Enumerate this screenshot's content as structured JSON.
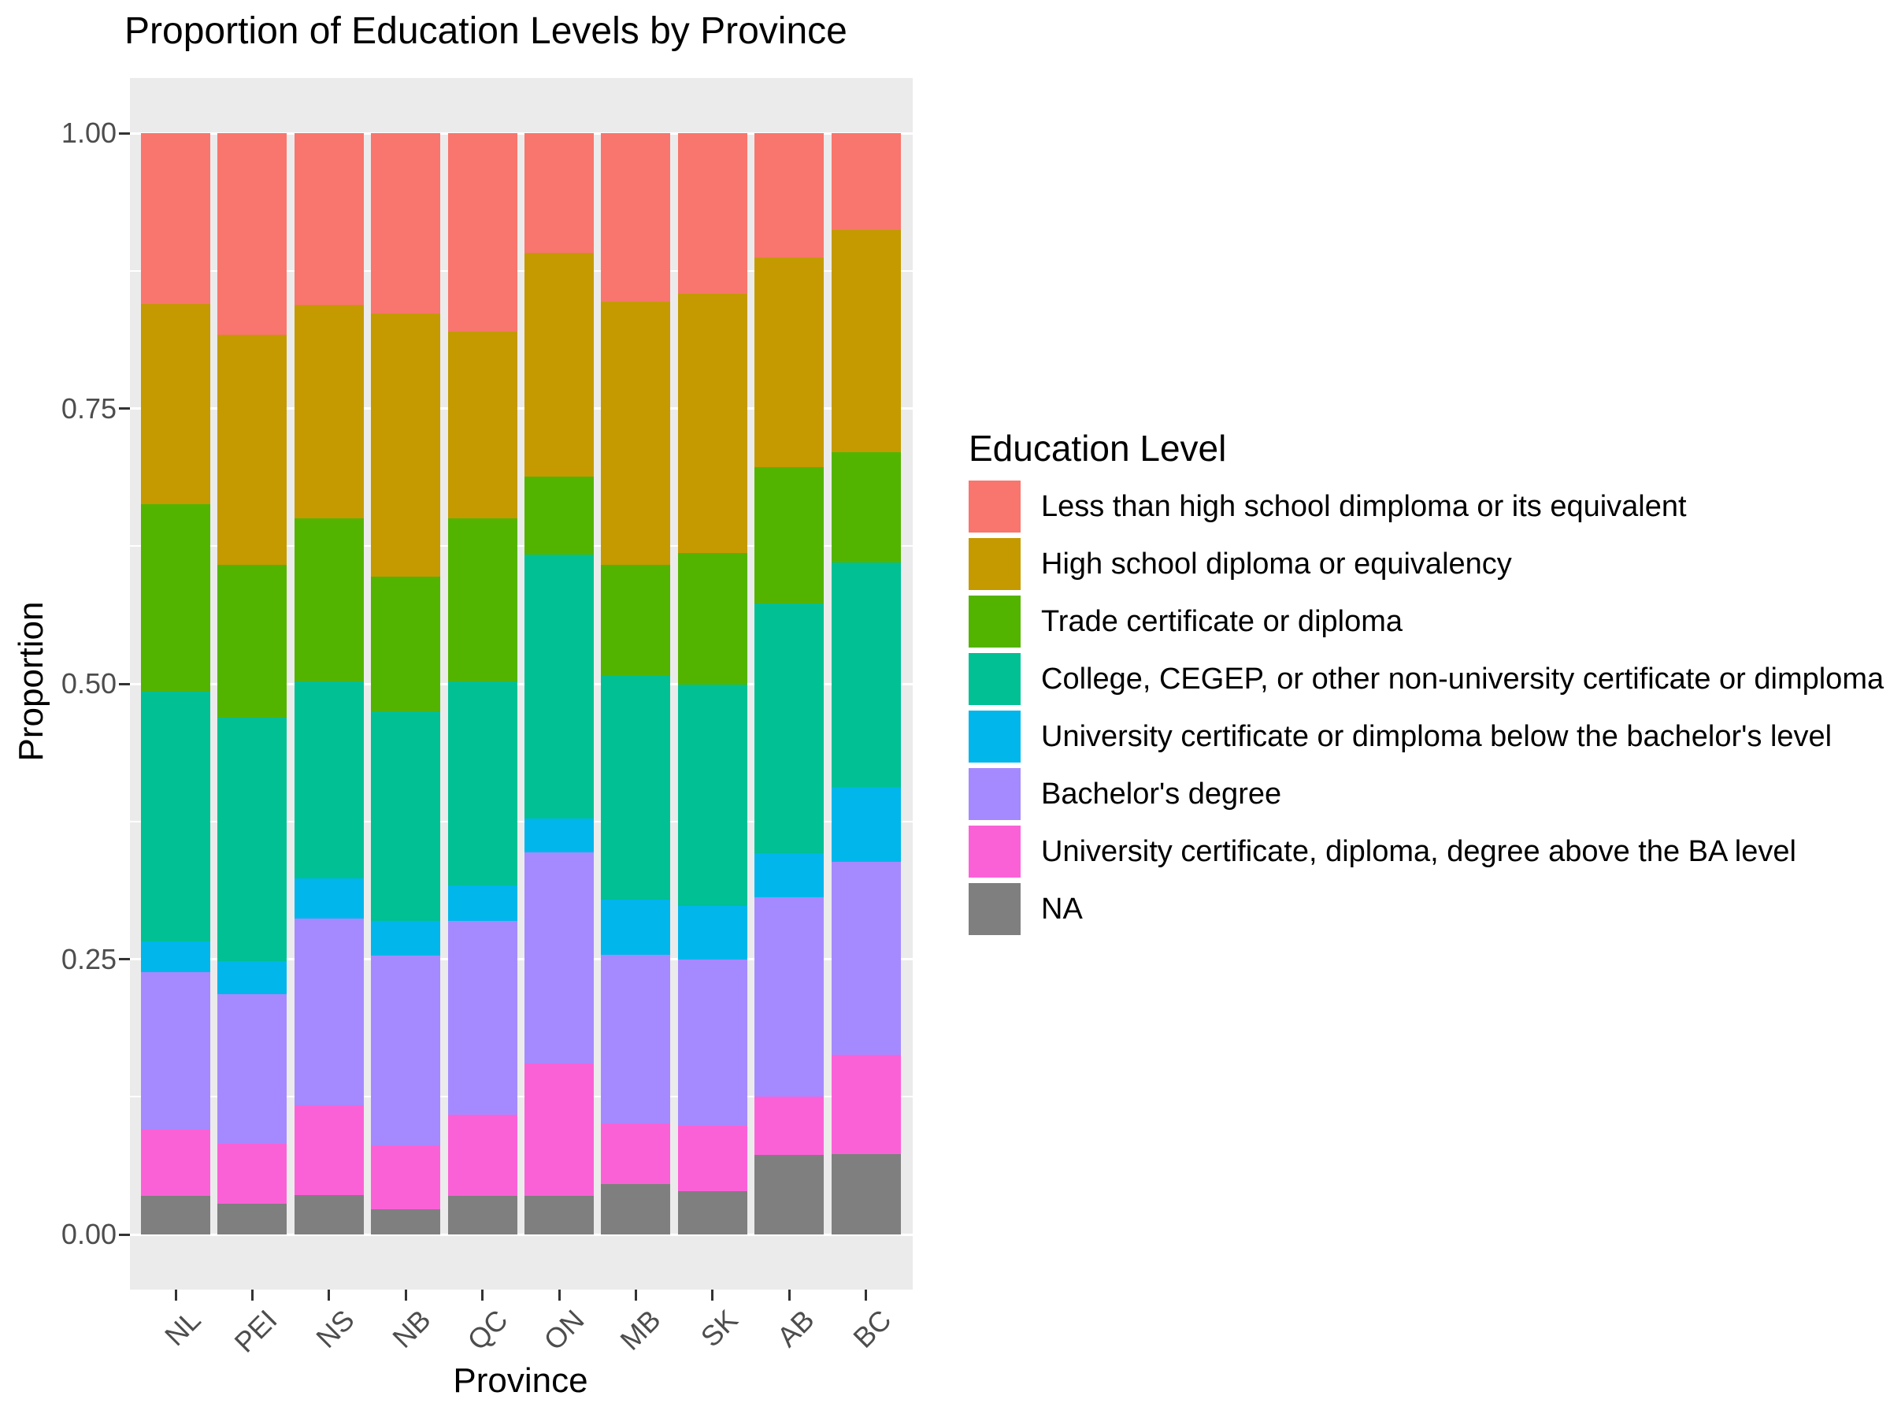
{
  "chart_data": {
    "type": "bar",
    "stacked": true,
    "orientation": "vertical",
    "title": "Proportion of Education Levels by Province",
    "xlabel": "Province",
    "ylabel": "Proportion",
    "ylim": [
      0,
      1
    ],
    "grid": true,
    "legend_position": "right",
    "legend_title": "Education Level",
    "categories": [
      "NL",
      "PEI",
      "NS",
      "NB",
      "QC",
      "ON",
      "MB",
      "SK",
      "AB",
      "BC"
    ],
    "yticks": [
      "0.00",
      "0.25",
      "0.50",
      "0.75",
      "1.00"
    ],
    "ytick_values": [
      0,
      0.25,
      0.5,
      0.75,
      1
    ],
    "minor_gridlines": [
      0.125,
      0.375,
      0.625,
      0.875
    ],
    "stack_note": "series are listed in legend order; first series is the TOP segment of each bar",
    "series": [
      {
        "name": "Less than high school dimploma or its equivalent",
        "color": "#F8766D",
        "values": [
          0.155,
          0.183,
          0.156,
          0.164,
          0.18,
          0.109,
          0.153,
          0.146,
          0.113,
          0.088
        ]
      },
      {
        "name": "High school diploma or equivalency",
        "color": "#C49A00",
        "values": [
          0.182,
          0.209,
          0.194,
          0.239,
          0.17,
          0.203,
          0.239,
          0.235,
          0.19,
          0.202
        ]
      },
      {
        "name": "Trade certificate or diploma",
        "color": "#53B400",
        "values": [
          0.17,
          0.139,
          0.148,
          0.122,
          0.148,
          0.071,
          0.1,
          0.12,
          0.124,
          0.1
        ]
      },
      {
        "name": "College, CEGEP, or other non-university certificate or dimploma",
        "color": "#00C094",
        "values": [
          0.227,
          0.221,
          0.179,
          0.19,
          0.185,
          0.239,
          0.204,
          0.201,
          0.227,
          0.204
        ]
      },
      {
        "name": "University certificate or dimploma below the bachelor's level",
        "color": "#00B6EB",
        "values": [
          0.028,
          0.03,
          0.036,
          0.032,
          0.032,
          0.031,
          0.05,
          0.048,
          0.04,
          0.068
        ]
      },
      {
        "name": "Bachelor's degree",
        "color": "#A58AFF",
        "values": [
          0.143,
          0.136,
          0.17,
          0.172,
          0.176,
          0.192,
          0.153,
          0.151,
          0.181,
          0.175
        ]
      },
      {
        "name": "University certificate, diploma, degree above the BA level",
        "color": "#FB61D7",
        "values": [
          0.06,
          0.054,
          0.081,
          0.058,
          0.074,
          0.12,
          0.055,
          0.06,
          0.053,
          0.09
        ]
      },
      {
        "name": "NA",
        "color": "#7F7F7F",
        "values": [
          0.035,
          0.028,
          0.036,
          0.023,
          0.035,
          0.035,
          0.046,
          0.039,
          0.072,
          0.073
        ]
      }
    ],
    "colors": {
      "panel_background": "#EBEBEB",
      "gridline": "#FFFFFF",
      "axis_text": "#4D4D4D",
      "tick_mark": "#333333",
      "title_text": "#000000"
    }
  }
}
